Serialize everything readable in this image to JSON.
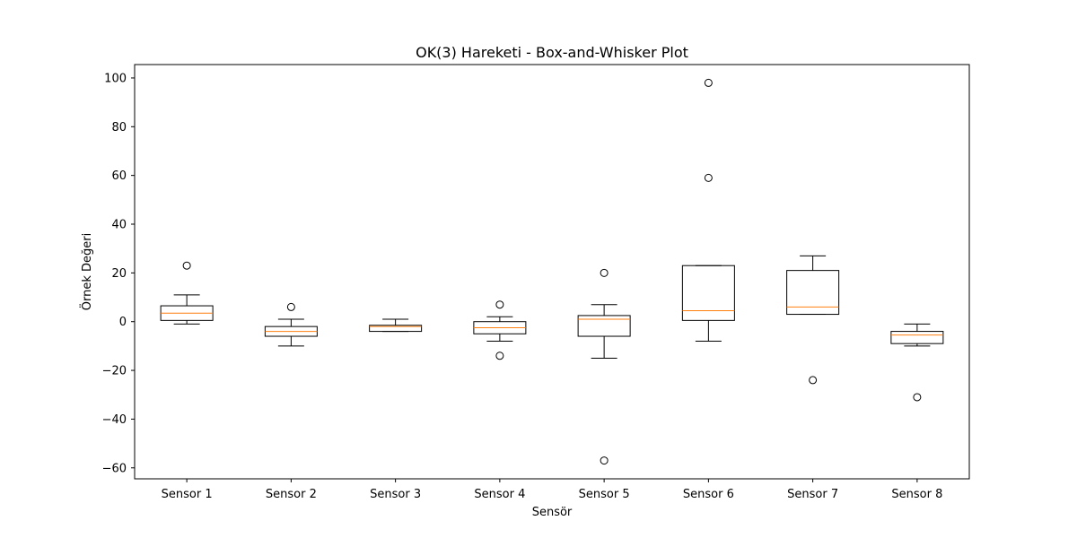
{
  "chart_data": {
    "type": "box",
    "title": "OK(3) Hareketi - Box-and-Whisker Plot",
    "xlabel": "Sensör",
    "ylabel": "Örnek Değeri",
    "ylim": [
      -64.5,
      105.5
    ],
    "yticks": [
      -60,
      -40,
      -20,
      0,
      20,
      40,
      60,
      80,
      100
    ],
    "categories": [
      "Sensor 1",
      "Sensor 2",
      "Sensor 3",
      "Sensor 4",
      "Sensor 5",
      "Sensor 6",
      "Sensor 7",
      "Sensor 8"
    ],
    "grid": false,
    "box_color": "#000000",
    "median_color": "#ff7f0e",
    "boxes": [
      {
        "whisker_low": -1,
        "q1": 0.5,
        "median": 3.5,
        "q3": 6.5,
        "whisker_high": 11,
        "outliers": [
          23
        ]
      },
      {
        "whisker_low": -10,
        "q1": -6,
        "median": -4,
        "q3": -2,
        "whisker_high": 1,
        "outliers": [
          6
        ]
      },
      {
        "whisker_low": -4,
        "q1": -4,
        "median": -2,
        "q3": -1.5,
        "whisker_high": 1,
        "outliers": []
      },
      {
        "whisker_low": -8,
        "q1": -5,
        "median": -2.5,
        "q3": 0,
        "whisker_high": 2,
        "outliers": [
          7,
          -14
        ]
      },
      {
        "whisker_low": -15,
        "q1": -6,
        "median": 1,
        "q3": 2.5,
        "whisker_high": 7,
        "outliers": [
          20,
          -57
        ]
      },
      {
        "whisker_low": -8,
        "q1": 0.5,
        "median": 4.5,
        "q3": 23,
        "whisker_high": 23,
        "outliers": [
          98,
          59
        ]
      },
      {
        "whisker_low": 3,
        "q1": 3,
        "median": 6,
        "q3": 21,
        "whisker_high": 27,
        "outliers": [
          -24
        ]
      },
      {
        "whisker_low": -10,
        "q1": -9,
        "median": -5.5,
        "q3": -4,
        "whisker_high": -1,
        "outliers": [
          -31
        ]
      }
    ]
  }
}
